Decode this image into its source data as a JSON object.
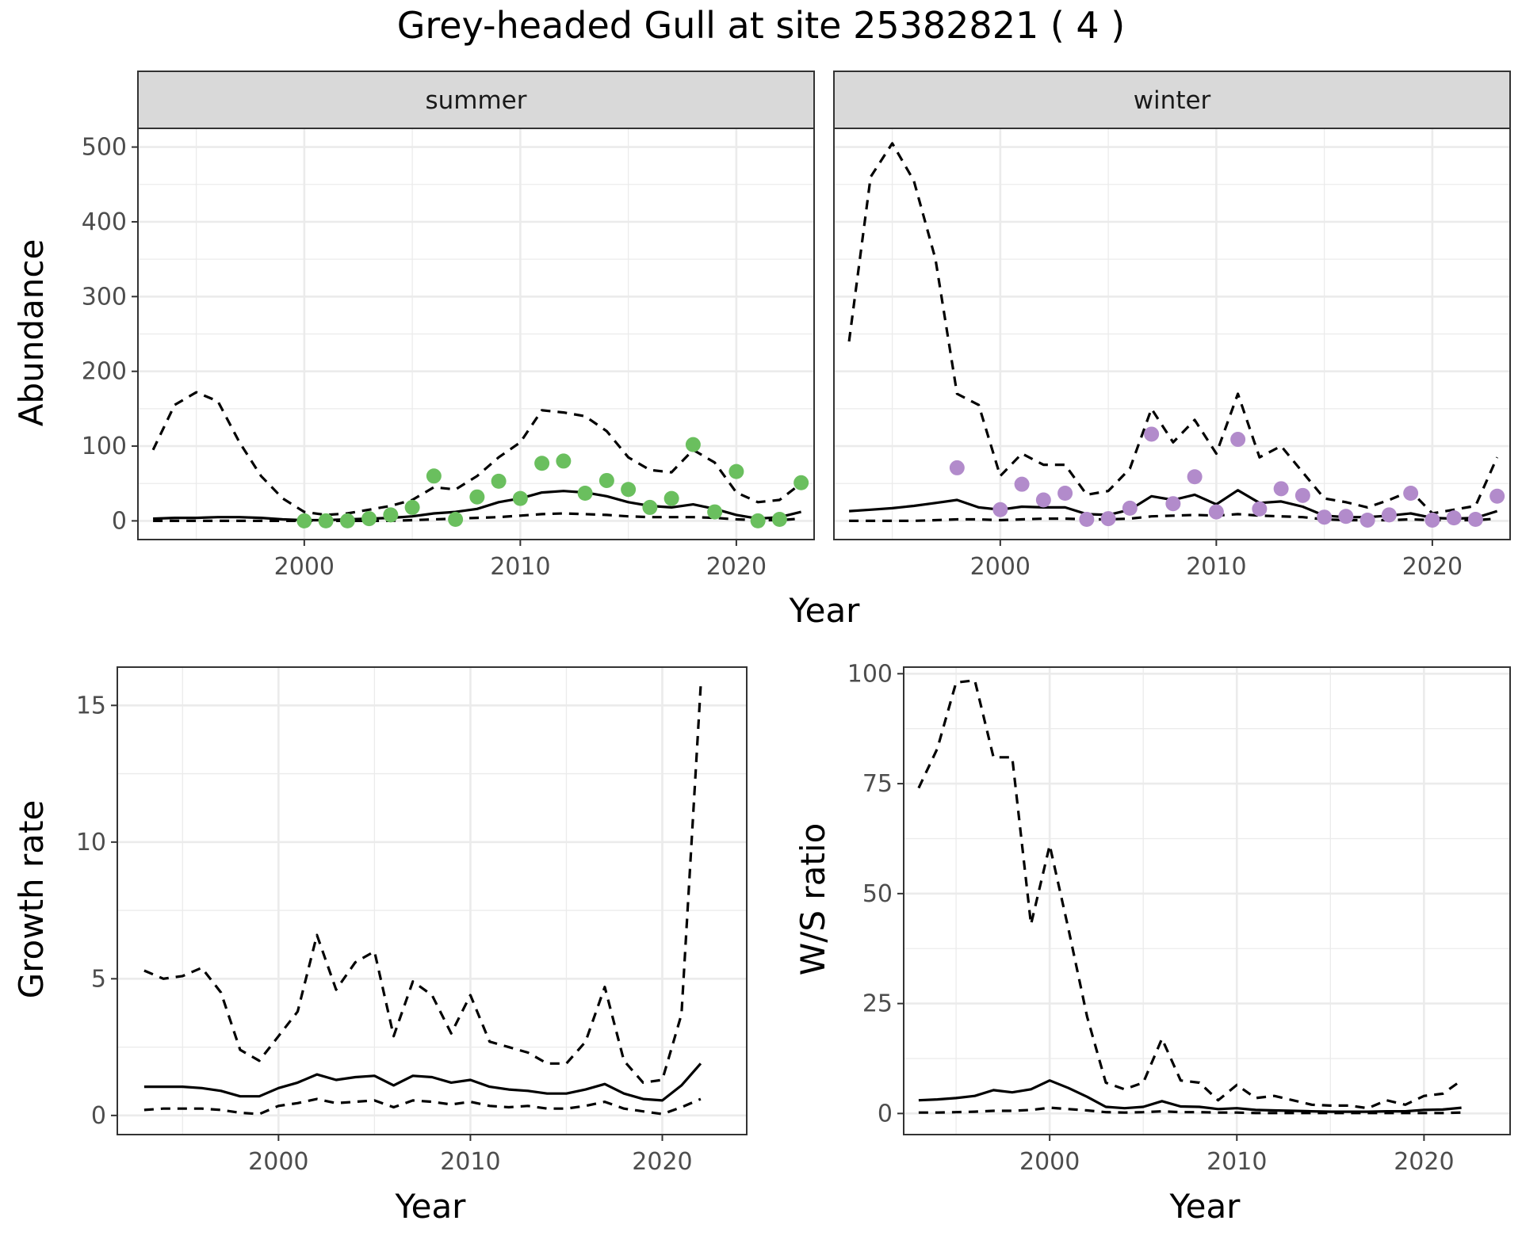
{
  "figure_title": "Grey-headed Gull at site 25382821 ( 4 )",
  "chart_data": [
    {
      "type": "line",
      "panel": "summer",
      "strip_label": "summer",
      "xlabel": "Year",
      "ylabel": "Abundance",
      "xlim": [
        1992.3,
        2023.6
      ],
      "ylim": [
        -25,
        525
      ],
      "xticks": [
        2000,
        2010,
        2020
      ],
      "yticks": [
        0,
        100,
        200,
        300,
        400,
        500
      ],
      "grid": true,
      "series": [
        {
          "role": "fit",
          "style": "solid",
          "x": [
            1993,
            1994,
            1995,
            1996,
            1997,
            1998,
            1999,
            2000,
            2001,
            2002,
            2003,
            2004,
            2005,
            2006,
            2007,
            2008,
            2009,
            2010,
            2011,
            2012,
            2013,
            2014,
            2015,
            2016,
            2017,
            2018,
            2019,
            2020,
            2021,
            2022,
            2023
          ],
          "values": [
            3,
            4,
            4,
            5,
            5,
            4,
            2,
            1,
            1,
            2,
            3,
            4,
            6,
            10,
            12,
            16,
            25,
            30,
            38,
            40,
            38,
            33,
            25,
            20,
            18,
            22,
            16,
            8,
            3,
            5,
            12
          ]
        },
        {
          "role": "upper",
          "style": "dashed",
          "x": [
            1993,
            1994,
            1995,
            1996,
            1997,
            1998,
            1999,
            2000,
            2001,
            2002,
            2003,
            2004,
            2005,
            2006,
            2007,
            2008,
            2009,
            2010,
            2011,
            2012,
            2013,
            2014,
            2015,
            2016,
            2017,
            2018,
            2019,
            2020,
            2021,
            2022,
            2023
          ],
          "values": [
            95,
            155,
            172,
            160,
            105,
            60,
            30,
            12,
            8,
            10,
            15,
            20,
            28,
            45,
            42,
            60,
            85,
            105,
            148,
            145,
            140,
            120,
            85,
            68,
            65,
            95,
            78,
            38,
            25,
            28,
            50
          ]
        },
        {
          "role": "lower",
          "style": "dashed",
          "x": [
            1993,
            1994,
            1995,
            1996,
            1997,
            1998,
            1999,
            2000,
            2001,
            2002,
            2003,
            2004,
            2005,
            2006,
            2007,
            2008,
            2009,
            2010,
            2011,
            2012,
            2013,
            2014,
            2015,
            2016,
            2017,
            2018,
            2019,
            2020,
            2021,
            2022,
            2023
          ],
          "values": [
            0,
            0,
            0,
            0,
            0,
            0,
            0,
            0,
            0,
            0,
            0,
            0,
            1,
            2,
            3,
            4,
            5,
            7,
            9,
            10,
            9,
            8,
            6,
            5,
            5,
            5,
            4,
            2,
            1,
            1,
            3
          ]
        }
      ],
      "points": {
        "color": "#6abf5e",
        "x": [
          2000,
          2001,
          2002,
          2003,
          2004,
          2005,
          2006,
          2007,
          2008,
          2009,
          2010,
          2011,
          2012,
          2013,
          2014,
          2015,
          2016,
          2017,
          2018,
          2019,
          2020,
          2021,
          2022,
          2023
        ],
        "values": [
          0,
          0,
          0,
          3,
          8,
          18,
          60,
          2,
          32,
          53,
          30,
          77,
          80,
          37,
          54,
          42,
          18,
          30,
          102,
          12,
          66,
          0,
          2,
          51
        ]
      }
    },
    {
      "type": "line",
      "panel": "winter",
      "strip_label": "winter",
      "xlabel": "Year",
      "ylabel": "Abundance",
      "xlim": [
        1992.3,
        2023.6
      ],
      "ylim": [
        -25,
        525
      ],
      "xticks": [
        2000,
        2010,
        2020
      ],
      "yticks": [
        0,
        100,
        200,
        300,
        400,
        500
      ],
      "grid": true,
      "series": [
        {
          "role": "fit",
          "style": "solid",
          "x": [
            1993,
            1994,
            1995,
            1996,
            1997,
            1998,
            1999,
            2000,
            2001,
            2002,
            2003,
            2004,
            2005,
            2006,
            2007,
            2008,
            2009,
            2010,
            2011,
            2012,
            2013,
            2014,
            2015,
            2016,
            2017,
            2018,
            2019,
            2020,
            2021,
            2022,
            2023
          ],
          "values": [
            13,
            15,
            17,
            20,
            24,
            28,
            18,
            15,
            19,
            18,
            18,
            9,
            8,
            15,
            33,
            28,
            35,
            22,
            41,
            24,
            26,
            19,
            7,
            5,
            5,
            7,
            10,
            4,
            3,
            4,
            13
          ]
        },
        {
          "role": "upper",
          "style": "dashed",
          "x": [
            1993,
            1994,
            1995,
            1996,
            1997,
            1998,
            1999,
            2000,
            2001,
            2002,
            2003,
            2004,
            2005,
            2006,
            2007,
            2008,
            2009,
            2010,
            2011,
            2012,
            2013,
            2014,
            2015,
            2016,
            2017,
            2018,
            2019,
            2020,
            2021,
            2022,
            2023
          ],
          "values": [
            240,
            460,
            505,
            455,
            350,
            170,
            155,
            60,
            90,
            75,
            75,
            35,
            40,
            70,
            150,
            105,
            135,
            90,
            170,
            85,
            100,
            65,
            30,
            25,
            18,
            28,
            40,
            10,
            15,
            20,
            85
          ]
        },
        {
          "role": "lower",
          "style": "dashed",
          "x": [
            1993,
            1994,
            1995,
            1996,
            1997,
            1998,
            1999,
            2000,
            2001,
            2002,
            2003,
            2004,
            2005,
            2006,
            2007,
            2008,
            2009,
            2010,
            2011,
            2012,
            2013,
            2014,
            2015,
            2016,
            2017,
            2018,
            2019,
            2020,
            2021,
            2022,
            2023
          ],
          "values": [
            0,
            0,
            0,
            0,
            1,
            2,
            2,
            1,
            2,
            3,
            3,
            2,
            2,
            3,
            6,
            7,
            8,
            7,
            9,
            7,
            6,
            5,
            2,
            1,
            1,
            1,
            2,
            1,
            1,
            1,
            3
          ]
        }
      ],
      "points": {
        "color": "#b28bcb",
        "x": [
          1998,
          2000,
          2001,
          2002,
          2003,
          2004,
          2005,
          2006,
          2007,
          2008,
          2009,
          2010,
          2011,
          2012,
          2013,
          2014,
          2015,
          2016,
          2017,
          2018,
          2019,
          2020,
          2021,
          2022,
          2023
        ],
        "values": [
          71,
          15,
          49,
          28,
          37,
          2,
          3,
          17,
          116,
          23,
          59,
          12,
          109,
          16,
          43,
          34,
          5,
          6,
          1,
          8,
          37,
          1,
          4,
          2,
          33
        ]
      }
    },
    {
      "type": "line",
      "panel": "growth",
      "xlabel": "Year",
      "ylabel": "Growth rate",
      "xlim": [
        1991.6,
        2024.4
      ],
      "ylim": [
        -0.7,
        16.4
      ],
      "xticks": [
        2000,
        2010,
        2020
      ],
      "yticks": [
        0,
        5,
        10,
        15
      ],
      "grid": true,
      "series": [
        {
          "role": "fit",
          "style": "solid",
          "x": [
            1993,
            1994,
            1995,
            1996,
            1997,
            1998,
            1999,
            2000,
            2001,
            2002,
            2003,
            2004,
            2005,
            2006,
            2007,
            2008,
            2009,
            2010,
            2011,
            2012,
            2013,
            2014,
            2015,
            2016,
            2017,
            2018,
            2019,
            2020,
            2021,
            2022
          ],
          "values": [
            1.05,
            1.05,
            1.05,
            1.0,
            0.9,
            0.7,
            0.7,
            1.0,
            1.2,
            1.5,
            1.3,
            1.4,
            1.45,
            1.1,
            1.45,
            1.4,
            1.2,
            1.3,
            1.05,
            0.95,
            0.9,
            0.8,
            0.8,
            0.95,
            1.15,
            0.8,
            0.6,
            0.55,
            1.1,
            1.9
          ]
        },
        {
          "role": "upper",
          "style": "dashed",
          "x": [
            1993,
            1994,
            1995,
            1996,
            1997,
            1998,
            1999,
            2000,
            2001,
            2002,
            2003,
            2004,
            2005,
            2006,
            2007,
            2008,
            2009,
            2010,
            2011,
            2012,
            2013,
            2014,
            2015,
            2016,
            2017,
            2018,
            2019,
            2020,
            2021,
            2022
          ],
          "values": [
            5.3,
            5.0,
            5.1,
            5.4,
            4.5,
            2.4,
            2.0,
            2.9,
            3.8,
            6.6,
            4.6,
            5.6,
            6.0,
            2.9,
            4.9,
            4.4,
            3.0,
            4.4,
            2.7,
            2.5,
            2.3,
            1.9,
            1.9,
            2.7,
            4.7,
            2.0,
            1.2,
            1.3,
            3.7,
            15.7
          ]
        },
        {
          "role": "lower",
          "style": "dashed",
          "x": [
            1993,
            1994,
            1995,
            1996,
            1997,
            1998,
            1999,
            2000,
            2001,
            2002,
            2003,
            2004,
            2005,
            2006,
            2007,
            2008,
            2009,
            2010,
            2011,
            2012,
            2013,
            2014,
            2015,
            2016,
            2017,
            2018,
            2019,
            2020,
            2021,
            2022
          ],
          "values": [
            0.2,
            0.25,
            0.25,
            0.25,
            0.2,
            0.1,
            0.05,
            0.35,
            0.45,
            0.6,
            0.45,
            0.5,
            0.55,
            0.3,
            0.55,
            0.5,
            0.4,
            0.5,
            0.35,
            0.3,
            0.35,
            0.25,
            0.25,
            0.35,
            0.5,
            0.25,
            0.15,
            0.05,
            0.3,
            0.6
          ]
        }
      ]
    },
    {
      "type": "line",
      "panel": "ws_ratio",
      "xlabel": "Year",
      "ylabel": "W/S ratio",
      "xlim": [
        1992.2,
        2024.6
      ],
      "ylim": [
        -4.8,
        101.5
      ],
      "xticks": [
        2000,
        2010,
        2020
      ],
      "yticks": [
        0,
        25,
        50,
        75,
        100
      ],
      "grid": true,
      "series": [
        {
          "role": "fit",
          "style": "solid",
          "x": [
            1993,
            1994,
            1995,
            1996,
            1997,
            1998,
            1999,
            2000,
            2001,
            2002,
            2003,
            2004,
            2005,
            2006,
            2007,
            2008,
            2009,
            2010,
            2011,
            2012,
            2013,
            2014,
            2015,
            2016,
            2017,
            2018,
            2019,
            2020,
            2021,
            2022
          ],
          "values": [
            3,
            3.2,
            3.5,
            4,
            5.3,
            4.8,
            5.5,
            7.5,
            5.8,
            3.8,
            1.5,
            1.2,
            1.5,
            2.8,
            1.6,
            1.5,
            1.0,
            1.2,
            0.8,
            0.7,
            0.6,
            0.5,
            0.4,
            0.4,
            0.4,
            0.5,
            0.5,
            0.8,
            0.9,
            1.3
          ]
        },
        {
          "role": "upper",
          "style": "dashed",
          "x": [
            1993,
            1994,
            1995,
            1996,
            1997,
            1998,
            1999,
            2000,
            2001,
            2002,
            2003,
            2004,
            2005,
            2006,
            2007,
            2008,
            2009,
            2010,
            2011,
            2012,
            2013,
            2014,
            2015,
            2016,
            2017,
            2018,
            2019,
            2020,
            2021,
            2022
          ],
          "values": [
            74,
            83,
            98,
            98.5,
            81,
            81,
            43,
            61,
            42,
            22,
            7,
            5.5,
            7,
            17,
            7.5,
            7,
            3,
            6.5,
            3.5,
            4,
            3,
            2,
            1.8,
            1.8,
            1.2,
            3,
            2,
            4,
            4.5,
            7.5
          ]
        },
        {
          "role": "lower",
          "style": "dashed",
          "x": [
            1993,
            1994,
            1995,
            1996,
            1997,
            1998,
            1999,
            2000,
            2001,
            2002,
            2003,
            2004,
            2005,
            2006,
            2007,
            2008,
            2009,
            2010,
            2011,
            2012,
            2013,
            2014,
            2015,
            2016,
            2017,
            2018,
            2019,
            2020,
            2021,
            2022
          ],
          "values": [
            0.2,
            0.2,
            0.3,
            0.4,
            0.6,
            0.6,
            0.8,
            1.3,
            1.0,
            0.7,
            0.3,
            0.2,
            0.3,
            0.5,
            0.3,
            0.3,
            0.2,
            0.2,
            0.1,
            0.1,
            0.1,
            0.1,
            0.1,
            0.1,
            0.1,
            0.1,
            0.1,
            0.1,
            0.1,
            0.2
          ]
        }
      ]
    }
  ]
}
